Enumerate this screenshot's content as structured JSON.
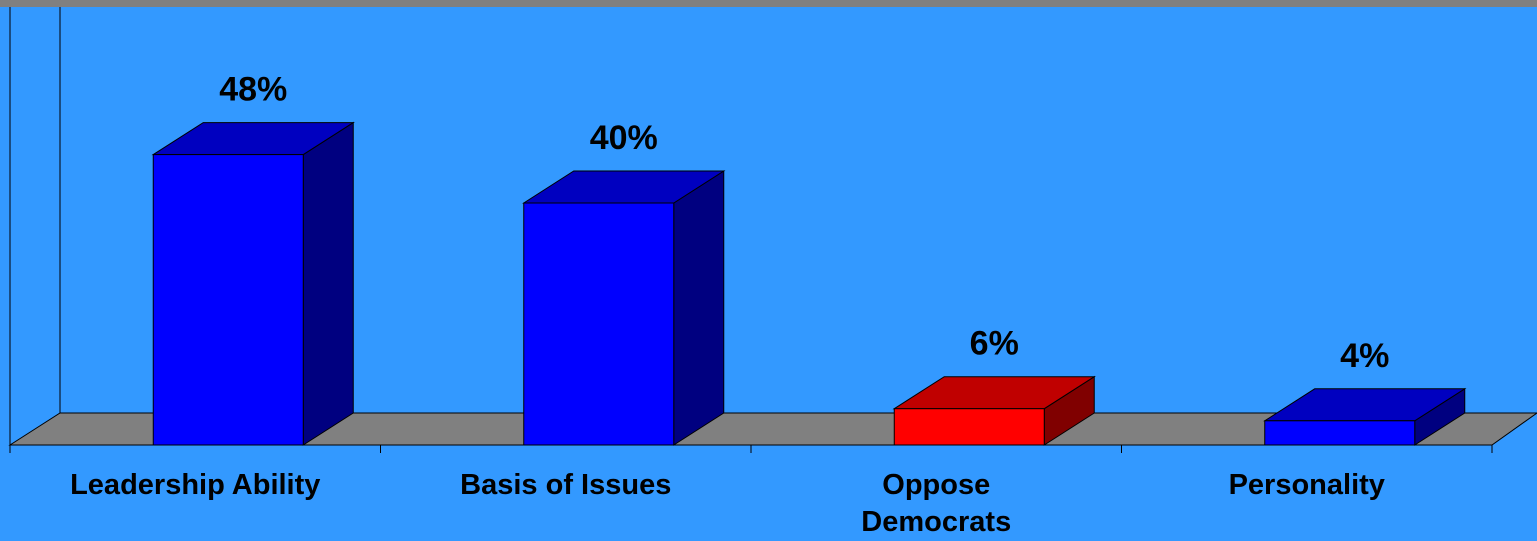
{
  "chart_data": {
    "type": "bar",
    "title": "",
    "xlabel": "",
    "ylabel": "",
    "ylim": [
      0,
      50
    ],
    "grid": false,
    "legend": "none",
    "categories": [
      "Leadership Ability",
      "Basis of Issues",
      "Oppose Democrats",
      "Personality"
    ],
    "category_lines": [
      [
        "Leadership Ability"
      ],
      [
        "Basis of Issues"
      ],
      [
        "Oppose",
        "Democrats"
      ],
      [
        "Personality"
      ]
    ],
    "values": [
      48,
      40,
      6,
      4
    ],
    "data_labels": [
      "48%",
      "40%",
      "6%",
      "4%"
    ],
    "bar_colors": [
      "#0000ff",
      "#0000ff",
      "#ff0000",
      "#0000ff"
    ],
    "bar_side_colors": [
      "#000080",
      "#000080",
      "#800000",
      "#000080"
    ],
    "bar_top_colors": [
      "#0000c0",
      "#0000c0",
      "#c00000",
      "#0000c0"
    ]
  },
  "colors": {
    "background": "#3399ff",
    "floor": "#808080",
    "top_band": "#808080",
    "axis": "#000000"
  }
}
